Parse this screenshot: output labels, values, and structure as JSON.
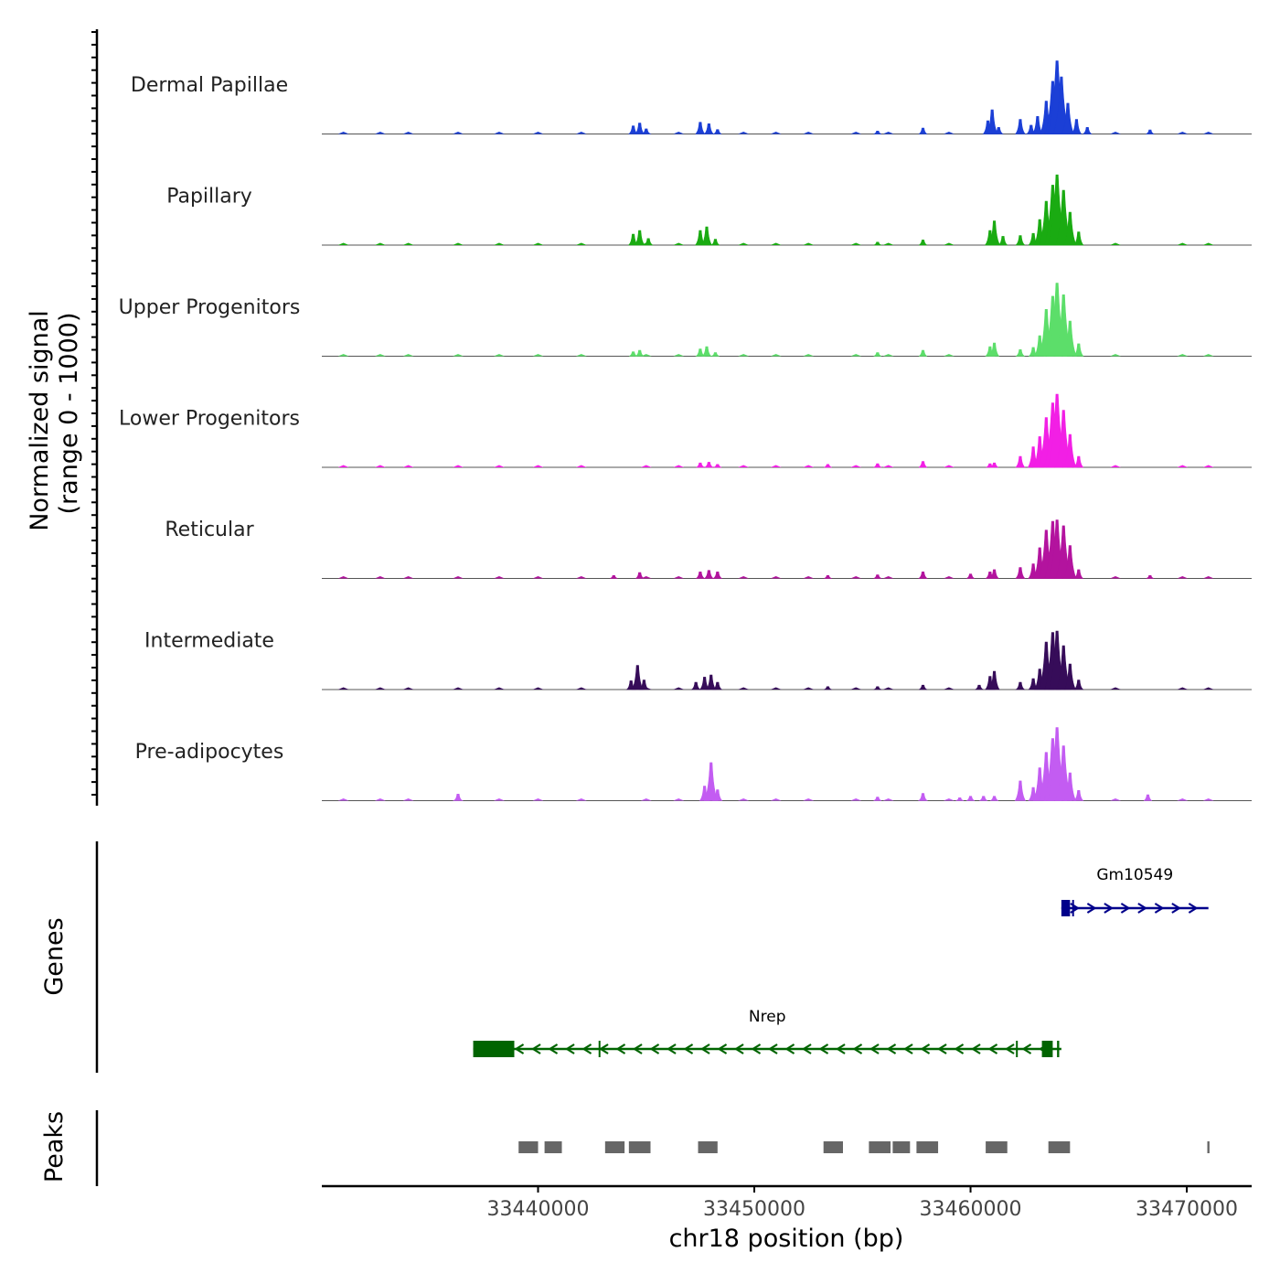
{
  "chart_data": {
    "type": "area",
    "title": "",
    "coverage": {
      "ylabel_line1": "Normalized signal",
      "ylabel_line2": "(range 0 - 1000)",
      "ylim": [
        0,
        1000
      ],
      "xlim": [
        33430000,
        33473000
      ],
      "baseline_points": [
        33431000,
        33432700,
        33434000,
        33436300,
        33438200,
        33440000,
        33442000,
        33445000,
        33446500,
        33449500,
        33451000,
        33452500,
        33454700,
        33456200,
        33459000,
        33463000,
        33466700,
        33469800,
        33471000
      ],
      "series": [
        {
          "name": "Dermal Papillae",
          "color": "#1b3fd6",
          "peaks": [
            {
              "pos": 33444400,
              "height": 110
            },
            {
              "pos": 33444700,
              "height": 150
            },
            {
              "pos": 33445000,
              "height": 70
            },
            {
              "pos": 33447500,
              "height": 160
            },
            {
              "pos": 33447900,
              "height": 140
            },
            {
              "pos": 33448300,
              "height": 60
            },
            {
              "pos": 33455700,
              "height": 40
            },
            {
              "pos": 33457800,
              "height": 80
            },
            {
              "pos": 33460800,
              "height": 180
            },
            {
              "pos": 33461000,
              "height": 330
            },
            {
              "pos": 33461300,
              "height": 90
            },
            {
              "pos": 33462300,
              "height": 200
            },
            {
              "pos": 33462800,
              "height": 120
            },
            {
              "pos": 33463100,
              "height": 240
            },
            {
              "pos": 33463500,
              "height": 450
            },
            {
              "pos": 33463800,
              "height": 720
            },
            {
              "pos": 33464000,
              "height": 1000
            },
            {
              "pos": 33464200,
              "height": 780
            },
            {
              "pos": 33464500,
              "height": 420
            },
            {
              "pos": 33464900,
              "height": 200
            },
            {
              "pos": 33465400,
              "height": 90
            },
            {
              "pos": 33468300,
              "height": 55
            }
          ]
        },
        {
          "name": "Papillary",
          "color": "#1aab12",
          "peaks": [
            {
              "pos": 33444400,
              "height": 150
            },
            {
              "pos": 33444700,
              "height": 200
            },
            {
              "pos": 33445100,
              "height": 90
            },
            {
              "pos": 33447500,
              "height": 200
            },
            {
              "pos": 33447800,
              "height": 250
            },
            {
              "pos": 33448200,
              "height": 80
            },
            {
              "pos": 33455700,
              "height": 40
            },
            {
              "pos": 33457800,
              "height": 70
            },
            {
              "pos": 33460900,
              "height": 200
            },
            {
              "pos": 33461100,
              "height": 330
            },
            {
              "pos": 33461500,
              "height": 120
            },
            {
              "pos": 33462300,
              "height": 130
            },
            {
              "pos": 33462900,
              "height": 160
            },
            {
              "pos": 33463200,
              "height": 350
            },
            {
              "pos": 33463500,
              "height": 600
            },
            {
              "pos": 33463800,
              "height": 820
            },
            {
              "pos": 33464000,
              "height": 960
            },
            {
              "pos": 33464300,
              "height": 750
            },
            {
              "pos": 33464600,
              "height": 450
            },
            {
              "pos": 33465000,
              "height": 180
            }
          ]
        },
        {
          "name": "Upper Progenitors",
          "color": "#5cde6a",
          "peaks": [
            {
              "pos": 33444400,
              "height": 60
            },
            {
              "pos": 33444700,
              "height": 80
            },
            {
              "pos": 33447500,
              "height": 100
            },
            {
              "pos": 33447800,
              "height": 130
            },
            {
              "pos": 33448200,
              "height": 50
            },
            {
              "pos": 33455700,
              "height": 50
            },
            {
              "pos": 33457800,
              "height": 80
            },
            {
              "pos": 33460900,
              "height": 130
            },
            {
              "pos": 33461100,
              "height": 180
            },
            {
              "pos": 33462300,
              "height": 90
            },
            {
              "pos": 33462900,
              "height": 120
            },
            {
              "pos": 33463200,
              "height": 280
            },
            {
              "pos": 33463500,
              "height": 640
            },
            {
              "pos": 33463800,
              "height": 820
            },
            {
              "pos": 33464000,
              "height": 1000
            },
            {
              "pos": 33464300,
              "height": 840
            },
            {
              "pos": 33464600,
              "height": 480
            },
            {
              "pos": 33465000,
              "height": 170
            }
          ]
        },
        {
          "name": "Lower Progenitors",
          "color": "#f21fe5",
          "peaks": [
            {
              "pos": 33447500,
              "height": 60
            },
            {
              "pos": 33447900,
              "height": 70
            },
            {
              "pos": 33448300,
              "height": 40
            },
            {
              "pos": 33453400,
              "height": 40
            },
            {
              "pos": 33455700,
              "height": 50
            },
            {
              "pos": 33457800,
              "height": 80
            },
            {
              "pos": 33460900,
              "height": 50
            },
            {
              "pos": 33461100,
              "height": 60
            },
            {
              "pos": 33462300,
              "height": 150
            },
            {
              "pos": 33462900,
              "height": 280
            },
            {
              "pos": 33463200,
              "height": 420
            },
            {
              "pos": 33463500,
              "height": 680
            },
            {
              "pos": 33463800,
              "height": 880
            },
            {
              "pos": 33464000,
              "height": 1000
            },
            {
              "pos": 33464300,
              "height": 780
            },
            {
              "pos": 33464600,
              "height": 450
            },
            {
              "pos": 33465000,
              "height": 150
            }
          ]
        },
        {
          "name": "Reticular",
          "color": "#b3139e",
          "peaks": [
            {
              "pos": 33443500,
              "height": 40
            },
            {
              "pos": 33444700,
              "height": 80
            },
            {
              "pos": 33447500,
              "height": 90
            },
            {
              "pos": 33447900,
              "height": 110
            },
            {
              "pos": 33448300,
              "height": 90
            },
            {
              "pos": 33453400,
              "height": 40
            },
            {
              "pos": 33455700,
              "height": 50
            },
            {
              "pos": 33457800,
              "height": 90
            },
            {
              "pos": 33460000,
              "height": 60
            },
            {
              "pos": 33460900,
              "height": 90
            },
            {
              "pos": 33461100,
              "height": 120
            },
            {
              "pos": 33462300,
              "height": 150
            },
            {
              "pos": 33462900,
              "height": 200
            },
            {
              "pos": 33463200,
              "height": 420
            },
            {
              "pos": 33463500,
              "height": 660
            },
            {
              "pos": 33463800,
              "height": 780
            },
            {
              "pos": 33464000,
              "height": 800
            },
            {
              "pos": 33464300,
              "height": 720
            },
            {
              "pos": 33464600,
              "height": 450
            },
            {
              "pos": 33465000,
              "height": 120
            },
            {
              "pos": 33468300,
              "height": 40
            }
          ]
        },
        {
          "name": "Intermediate",
          "color": "#360c59",
          "peaks": [
            {
              "pos": 33444300,
              "height": 120
            },
            {
              "pos": 33444600,
              "height": 330
            },
            {
              "pos": 33444900,
              "height": 130
            },
            {
              "pos": 33447300,
              "height": 100
            },
            {
              "pos": 33447700,
              "height": 170
            },
            {
              "pos": 33448000,
              "height": 200
            },
            {
              "pos": 33448300,
              "height": 100
            },
            {
              "pos": 33453400,
              "height": 40
            },
            {
              "pos": 33455700,
              "height": 40
            },
            {
              "pos": 33457800,
              "height": 60
            },
            {
              "pos": 33460400,
              "height": 60
            },
            {
              "pos": 33460900,
              "height": 180
            },
            {
              "pos": 33461100,
              "height": 250
            },
            {
              "pos": 33462300,
              "height": 100
            },
            {
              "pos": 33462900,
              "height": 150
            },
            {
              "pos": 33463200,
              "height": 280
            },
            {
              "pos": 33463500,
              "height": 650
            },
            {
              "pos": 33463800,
              "height": 780
            },
            {
              "pos": 33464000,
              "height": 800
            },
            {
              "pos": 33464300,
              "height": 600
            },
            {
              "pos": 33464600,
              "height": 350
            },
            {
              "pos": 33465000,
              "height": 130
            }
          ]
        },
        {
          "name": "Pre-adipocytes",
          "color": "#c35cf2",
          "peaks": [
            {
              "pos": 33436300,
              "height": 90
            },
            {
              "pos": 33447700,
              "height": 200
            },
            {
              "pos": 33448000,
              "height": 520
            },
            {
              "pos": 33448300,
              "height": 150
            },
            {
              "pos": 33455700,
              "height": 50
            },
            {
              "pos": 33457800,
              "height": 100
            },
            {
              "pos": 33459500,
              "height": 40
            },
            {
              "pos": 33460000,
              "height": 60
            },
            {
              "pos": 33460600,
              "height": 60
            },
            {
              "pos": 33461100,
              "height": 60
            },
            {
              "pos": 33462300,
              "height": 270
            },
            {
              "pos": 33462900,
              "height": 180
            },
            {
              "pos": 33463200,
              "height": 450
            },
            {
              "pos": 33463500,
              "height": 660
            },
            {
              "pos": 33463800,
              "height": 850
            },
            {
              "pos": 33464000,
              "height": 1000
            },
            {
              "pos": 33464300,
              "height": 750
            },
            {
              "pos": 33464600,
              "height": 380
            },
            {
              "pos": 33465000,
              "height": 140
            },
            {
              "pos": 33468200,
              "height": 80
            }
          ]
        }
      ]
    },
    "genes": {
      "ylabel": "Genes",
      "items": [
        {
          "name": "Gm10549",
          "start": 33464200,
          "end": 33471000,
          "strand": "+",
          "color": "#00008b",
          "exons": [
            [
              33464200,
              33464600
            ],
            [
              33464700,
              33464750
            ]
          ]
        },
        {
          "name": "Nrep",
          "start": 33437000,
          "end": 33464200,
          "strand": "-",
          "color": "#006400",
          "exons": [
            [
              33437000,
              33438900
            ],
            [
              33442800,
              33442850
            ],
            [
              33462100,
              33462150
            ],
            [
              33463300,
              33463800
            ],
            [
              33464000,
              33464100
            ]
          ]
        }
      ]
    },
    "peaks": {
      "ylabel": "Peaks",
      "color": "#666666",
      "regions": [
        [
          33439100,
          33440000
        ],
        [
          33440300,
          33441100
        ],
        [
          33443100,
          33444000
        ],
        [
          33444200,
          33445200
        ],
        [
          33447400,
          33448300
        ],
        [
          33453200,
          33454100
        ],
        [
          33455300,
          33456300
        ],
        [
          33456400,
          33457200
        ],
        [
          33457500,
          33458500
        ],
        [
          33460700,
          33461700
        ],
        [
          33463600,
          33464600
        ],
        [
          33470950,
          33471050
        ]
      ]
    },
    "xaxis": {
      "label": "chr18 position (bp)",
      "ticks": [
        33440000,
        33450000,
        33460000,
        33470000
      ],
      "tick_labels": [
        "33440000",
        "33450000",
        "33460000",
        "33470000"
      ]
    }
  }
}
